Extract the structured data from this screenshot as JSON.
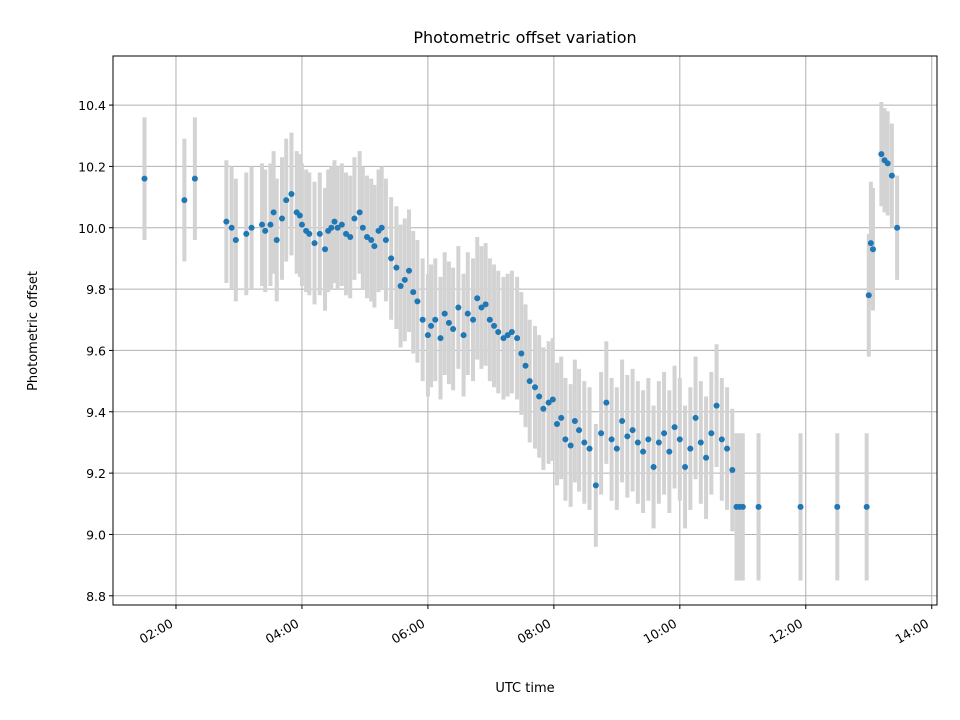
{
  "chart_data": {
    "type": "scatter",
    "title": "Photometric offset variation",
    "xlabel": "UTC time",
    "ylabel": "Photometric offset",
    "x_unit": "UTC time",
    "xlim": [
      "01:00",
      "14:05"
    ],
    "ylim": [
      8.77,
      10.56
    ],
    "x_ticks": [
      "02:00",
      "04:00",
      "06:00",
      "08:00",
      "10:00",
      "12:00",
      "14:00"
    ],
    "y_ticks": [
      "8.8",
      "9.0",
      "9.2",
      "9.4",
      "9.6",
      "9.8",
      "10.0",
      "10.2",
      "10.4"
    ],
    "grid": true,
    "colors": {
      "marker": "#1f77b4",
      "errorbar": "#d3d3d3",
      "grid": "#b0b0b0"
    },
    "series": [
      {
        "x": [
          "01:30",
          "02:08",
          "02:18",
          "02:48",
          "02:53",
          "02:57",
          "03:07",
          "03:12",
          "03:22",
          "03:25",
          "03:30",
          "03:33",
          "03:36",
          "03:41",
          "03:45",
          "03:50",
          "03:55",
          "03:58",
          "04:00",
          "04:04",
          "04:07",
          "04:12",
          "04:17",
          "04:22",
          "04:25",
          "04:28",
          "04:31",
          "04:34",
          "04:38",
          "04:42",
          "04:46",
          "04:50",
          "04:55",
          "04:58",
          "05:02",
          "05:06",
          "05:09",
          "05:13",
          "05:16",
          "05:20",
          "05:25",
          "05:30",
          "05:34",
          "05:38",
          "05:42",
          "05:46",
          "05:50",
          "05:55",
          "06:00",
          "06:03",
          "06:07",
          "06:12",
          "06:16",
          "06:20",
          "06:24",
          "06:29",
          "06:34",
          "06:38",
          "06:43",
          "06:47",
          "06:51",
          "06:55",
          "06:59",
          "07:03",
          "07:07",
          "07:12",
          "07:16",
          "07:20",
          "07:25",
          "07:29",
          "07:33",
          "07:37",
          "07:42",
          "07:46",
          "07:50",
          "07:55",
          "07:59",
          "08:03",
          "08:07",
          "08:11",
          "08:16",
          "08:20",
          "08:24",
          "08:29",
          "08:34",
          "08:40",
          "08:45",
          "08:50",
          "08:55",
          "09:00",
          "09:05",
          "09:10",
          "09:15",
          "09:20",
          "09:25",
          "09:30",
          "09:35",
          "09:40",
          "09:45",
          "09:50",
          "09:55",
          "10:00",
          "10:05",
          "10:10",
          "10:15",
          "10:20",
          "10:25",
          "10:30",
          "10:35",
          "10:40",
          "10:45",
          "10:50",
          "10:54",
          "10:57",
          "11:00",
          "11:15",
          "11:55",
          "12:30",
          "12:58",
          "13:00",
          "13:02",
          "13:04",
          "13:12",
          "13:15",
          "13:18",
          "13:22",
          "13:27"
        ],
        "y": [
          10.16,
          10.09,
          10.16,
          10.02,
          10.0,
          9.96,
          9.98,
          10.0,
          10.01,
          9.99,
          10.01,
          10.05,
          9.96,
          10.03,
          10.09,
          10.11,
          10.05,
          10.04,
          10.01,
          9.99,
          9.98,
          9.95,
          9.98,
          9.93,
          9.99,
          10.0,
          10.02,
          10.0,
          10.01,
          9.98,
          9.97,
          10.03,
          10.05,
          10.0,
          9.97,
          9.96,
          9.94,
          9.99,
          10.0,
          9.96,
          9.9,
          9.87,
          9.81,
          9.83,
          9.86,
          9.79,
          9.76,
          9.7,
          9.65,
          9.68,
          9.7,
          9.64,
          9.72,
          9.69,
          9.67,
          9.74,
          9.65,
          9.72,
          9.7,
          9.77,
          9.74,
          9.75,
          9.7,
          9.68,
          9.66,
          9.64,
          9.65,
          9.66,
          9.64,
          9.59,
          9.55,
          9.5,
          9.48,
          9.45,
          9.41,
          9.43,
          9.44,
          9.36,
          9.38,
          9.31,
          9.29,
          9.37,
          9.34,
          9.3,
          9.28,
          9.16,
          9.33,
          9.43,
          9.31,
          9.28,
          9.37,
          9.32,
          9.34,
          9.3,
          9.27,
          9.31,
          9.22,
          9.3,
          9.33,
          9.27,
          9.35,
          9.31,
          9.22,
          9.28,
          9.38,
          9.3,
          9.25,
          9.33,
          9.42,
          9.31,
          9.28,
          9.21,
          9.09,
          9.09,
          9.09,
          9.09,
          9.09,
          9.09,
          9.09,
          9.78,
          9.95,
          9.93,
          10.24,
          10.22,
          10.21,
          10.17,
          10.0
        ]
      }
    ]
  }
}
